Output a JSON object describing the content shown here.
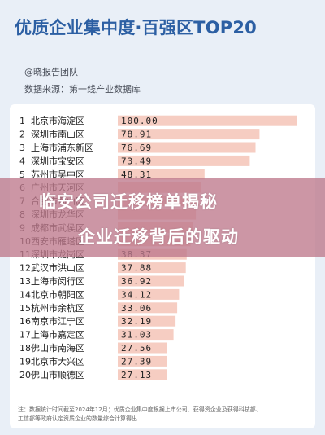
{
  "header": {
    "title": "优质企业集中度·百强区TOP20",
    "author": "@晓报告团队",
    "source": "数据来源：第一线产业数据库"
  },
  "overlay": {
    "line1": "临安公司迁移榜单揭秘",
    "line2": "企业迁移背后的驱动"
  },
  "footnote": {
    "line1": "注：数据统计时间截至2024年12月；优质企业集中度根据上市公司、获得资企业及获得科技部、",
    "line2": "工信部等政府认定资质企业的数量综合计算得出"
  },
  "colors": {
    "title": "#2c5fa3",
    "bar": "#f6cdc2",
    "background": "#e9eff7",
    "overlay": "#be788c"
  },
  "chart_data": {
    "type": "bar",
    "orientation": "horizontal",
    "ranks": [
      "1",
      "2",
      "3",
      "4",
      "5",
      "6",
      "7",
      "8",
      "9",
      "10",
      "11",
      "12",
      "13",
      "14",
      "15",
      "16",
      "17",
      "18",
      "19",
      "20"
    ],
    "categories": [
      "北京市海淀区",
      "深圳市南山区",
      "上海市浦东新区",
      "深圳市宝安区",
      "苏州市吴中区",
      "广州市天河区",
      "合肥市蜀山区",
      "深圳市龙华区",
      "成都市武侯区",
      "西安市雁塔区",
      "深圳市龙岗区",
      "武汉市洪山区",
      "上海市闵行区",
      "北京市朝阳区",
      "杭州市余杭区",
      "南京市江宁区",
      "上海市嘉定区",
      "佛山市南海区",
      "北京市大兴区",
      "佛山市顺德区"
    ],
    "value_labels": [
      "100.00",
      "78.91",
      "76.69",
      "73.49",
      "48.31",
      "",
      "",
      "",
      "",
      "",
      "38.37",
      "37.88",
      "36.92",
      "34.12",
      "33.06",
      "32.19",
      "31.03",
      "27.56",
      "27.39",
      "27.13"
    ],
    "values": [
      100.0,
      78.91,
      76.69,
      73.49,
      48.31,
      46.5,
      45.0,
      43.5,
      42.0,
      40.5,
      38.37,
      37.88,
      36.92,
      34.12,
      33.06,
      32.19,
      31.03,
      27.56,
      27.39,
      27.13
    ],
    "xlim": [
      0,
      100
    ],
    "legend": "none",
    "grid": false
  }
}
